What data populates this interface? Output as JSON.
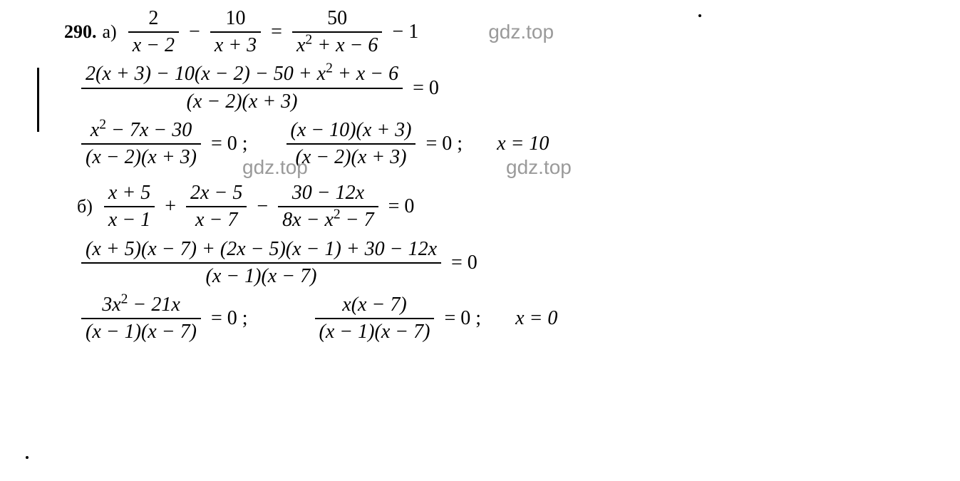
{
  "problem_number": "290.",
  "parts": {
    "a": "а)",
    "b": "б)"
  },
  "watermark": "gdz.top",
  "colors": {
    "text": "#000000",
    "watermark": "#9a9a9a",
    "background": "#ffffff"
  },
  "fonts": {
    "math_family": "Times New Roman",
    "watermark_family": "Arial",
    "math_size_pt": 21,
    "label_size_pt": 20,
    "watermark_size_pt": 21
  },
  "line_a": {
    "eq1": {
      "f1": {
        "num": "2",
        "den": "x − 2"
      },
      "minus": "−",
      "f2": {
        "num": "10",
        "den": "x + 3"
      },
      "equals": "=",
      "f3": {
        "num": "50",
        "den_html": "x<sup>2</sup> + x − 6"
      },
      "tail": "− 1"
    },
    "eq2": {
      "f": {
        "num_html": "2(x + 3) − 10(x − 2) − 50 + x<sup>2</sup> + x − 6",
        "den": "(x − 2)(x + 3)"
      },
      "rhs": "= 0"
    },
    "eq3a": {
      "f": {
        "num_html": "x<sup>2</sup> − 7x − 30",
        "den": "(x − 2)(x + 3)"
      },
      "rhs": "= 0 ;"
    },
    "eq3b": {
      "f": {
        "num": "(x − 10)(x + 3)",
        "den": "(x − 2)(x + 3)"
      },
      "rhs": "= 0 ;"
    },
    "sol": "x = 10"
  },
  "line_b": {
    "eq1": {
      "f1": {
        "num": "x + 5",
        "den": "x − 1"
      },
      "plus": "+",
      "f2": {
        "num": "2x − 5",
        "den": "x − 7"
      },
      "minus": "−",
      "f3": {
        "num": "30 − 12x",
        "den_html": "8x − x<sup>2</sup> − 7"
      },
      "rhs": "= 0"
    },
    "eq2": {
      "f": {
        "num": "(x + 5)(x − 7) + (2x − 5)(x − 1) + 30 − 12x",
        "den": "(x − 1)(x − 7)"
      },
      "rhs": "= 0"
    },
    "eq3a": {
      "f": {
        "num_html": "3x<sup>2</sup> − 21x",
        "den": "(x − 1)(x − 7)"
      },
      "rhs": "= 0 ;"
    },
    "eq3b": {
      "f": {
        "num": "x(x − 7)",
        "den": "(x − 1)(x − 7)"
      },
      "rhs": "= 0 ;"
    },
    "sol": "x = 0"
  }
}
